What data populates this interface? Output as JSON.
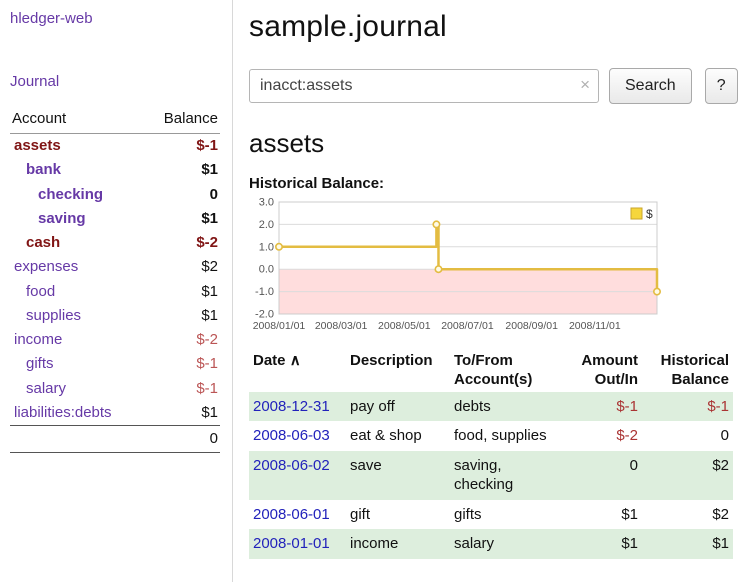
{
  "colors": {
    "link_purple": "#6639a6",
    "date_link_blue": "#2222bb",
    "negative_red": "#bb5555",
    "negative_dark_red": "#801515",
    "table_negative_red": "#aa3333",
    "table_stripe_green": "#ddeedd",
    "chart_line_gold": "#e3bc42",
    "chart_negative_pink": "#ffdddd"
  },
  "sidebar": {
    "brand": "hledger-web",
    "journal_label": "Journal",
    "accounts_table": {
      "col_account": "Account",
      "col_balance": "Balance",
      "rows": [
        {
          "name": "assets",
          "indent": 0,
          "balance": "$-1",
          "neg": true,
          "bold": true,
          "name_neg": true
        },
        {
          "name": "bank",
          "indent": 1,
          "balance": "$1",
          "neg": false,
          "bold": true,
          "name_neg": false
        },
        {
          "name": "checking",
          "indent": 2,
          "balance": "0",
          "neg": false,
          "bold": true,
          "name_neg": false
        },
        {
          "name": "saving",
          "indent": 2,
          "balance": "$1",
          "neg": false,
          "bold": true,
          "name_neg": false
        },
        {
          "name": "cash",
          "indent": 1,
          "balance": "$-2",
          "neg": true,
          "bold": true,
          "name_neg": true
        },
        {
          "name": "expenses",
          "indent": 0,
          "balance": "$2",
          "neg": false,
          "bold": false,
          "name_neg": false
        },
        {
          "name": "food",
          "indent": 1,
          "balance": "$1",
          "neg": false,
          "bold": false,
          "name_neg": false
        },
        {
          "name": "supplies",
          "indent": 1,
          "balance": "$1",
          "neg": false,
          "bold": false,
          "name_neg": false
        },
        {
          "name": "income",
          "indent": 0,
          "balance": "$-2",
          "neg": true,
          "bold": false,
          "name_neg": false
        },
        {
          "name": "gifts",
          "indent": 1,
          "balance": "$-1",
          "neg": true,
          "bold": false,
          "name_neg": false
        },
        {
          "name": "salary",
          "indent": 1,
          "balance": "$-1",
          "neg": true,
          "bold": false,
          "name_neg": false
        },
        {
          "name": "liabilities:debts",
          "indent": 0,
          "balance": "$1",
          "neg": false,
          "bold": false,
          "name_neg": false
        }
      ],
      "total": "0"
    }
  },
  "main": {
    "title": "sample.journal",
    "search": {
      "value": "inacct:assets",
      "clear_icon": "×",
      "button_label": "Search",
      "help_label": "?"
    },
    "account_heading": "assets"
  },
  "chart_data": {
    "type": "line",
    "title": "Historical Balance:",
    "x": [
      "2008-01-01",
      "2008-06-01",
      "2008-06-03",
      "2008-12-31"
    ],
    "series": [
      {
        "name": "$",
        "values": [
          1,
          2,
          0,
          -1
        ],
        "color": "#e3bc42",
        "step": "after",
        "markers": true
      }
    ],
    "ylim": [
      -2,
      3
    ],
    "yticks": [
      "3.0",
      "2.0",
      "1.0",
      "0.0",
      "-1.0",
      "-2.0"
    ],
    "xtick_labels": [
      "2008/01/01",
      "2008/03/01",
      "2008/05/01",
      "2008/07/01",
      "2008/09/01",
      "2008/11/01"
    ],
    "xtick_dates": [
      "2008-01-01",
      "2008-03-01",
      "2008-05-01",
      "2008-07-01",
      "2008-09-01",
      "2008-11-01"
    ],
    "xdomain": [
      "2008-01-01",
      "2008-12-31"
    ],
    "grid": true,
    "legend": {
      "label": "$",
      "position": "top-right"
    },
    "negative_region_fill": "#ffdddd"
  },
  "register": {
    "headers": {
      "date": "Date",
      "description": "Description",
      "account": "To/From\nAccount(s)",
      "amount": "Amount\nOut/In",
      "balance": "Historical\nBalance"
    },
    "sort_icon": "∧",
    "rows": [
      {
        "date": "2008-12-31",
        "description": "pay off",
        "account": "debts",
        "amount": "$-1",
        "amount_neg": true,
        "balance": "$-1",
        "balance_neg": true
      },
      {
        "date": "2008-06-03",
        "description": "eat & shop",
        "account": "food, supplies",
        "amount": "$-2",
        "amount_neg": true,
        "balance": "0",
        "balance_neg": false
      },
      {
        "date": "2008-06-02",
        "description": "save",
        "account": "saving,\nchecking",
        "amount": "0",
        "amount_neg": false,
        "balance": "$2",
        "balance_neg": false
      },
      {
        "date": "2008-06-01",
        "description": "gift",
        "account": "gifts",
        "amount": "$1",
        "amount_neg": false,
        "balance": "$2",
        "balance_neg": false
      },
      {
        "date": "2008-01-01",
        "description": "income",
        "account": "salary",
        "amount": "$1",
        "amount_neg": false,
        "balance": "$1",
        "balance_neg": false
      }
    ]
  }
}
